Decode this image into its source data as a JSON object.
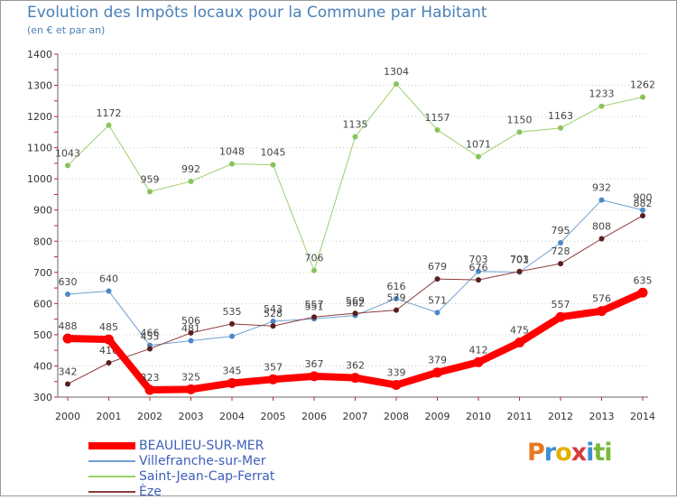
{
  "header": {
    "title": "Evolution des Impôts locaux pour la Commune par Habitant",
    "subtitle": "(en € et par an)"
  },
  "logo": {
    "text": "Proxiti",
    "colors": [
      "#e87722",
      "#3c8fd6",
      "#e2b000",
      "#d63b3b",
      "#3c8fd6",
      "#79b939",
      "#79b939"
    ]
  },
  "chart_data": {
    "type": "line",
    "title": "Evolution des Impôts locaux pour la Commune par Habitant",
    "subtitle": "(en € et par an)",
    "xlabel": "",
    "ylabel": "",
    "x": [
      "2000",
      "2001",
      "2002",
      "2003",
      "2004",
      "2005",
      "2006",
      "2007",
      "2008",
      "2009",
      "2010",
      "2011",
      "2012",
      "2013",
      "2014"
    ],
    "ylim": [
      300,
      1400
    ],
    "yticks": [
      300,
      400,
      500,
      600,
      700,
      800,
      900,
      1000,
      1100,
      1200,
      1300,
      1400
    ],
    "grid": "horizontal dotted",
    "legend_position": "bottom-left",
    "series": [
      {
        "name": "Saint-Jean-Cap-Ferrat",
        "color": "#99d16b",
        "marker": "#88c45a",
        "width": 1,
        "values": [
          1043,
          1172,
          959,
          992,
          1048,
          1045,
          706,
          1135,
          1304,
          1157,
          1071,
          1150,
          1163,
          1233,
          1262
        ],
        "labels": [
          "1043",
          "1172",
          "959",
          "992",
          "1048",
          "1045",
          "706",
          "1135",
          "1304",
          "1157",
          "1071",
          "1150",
          "1163",
          "1233",
          "1262"
        ]
      },
      {
        "name": "Villefranche-sur-Mer",
        "color": "#6fa0d3",
        "marker": "#4d88c8",
        "width": 1,
        "values": [
          630,
          640,
          466,
          481,
          495,
          543,
          551,
          562,
          616,
          571,
          703,
          701,
          795,
          932,
          900
        ],
        "labels": [
          "630",
          "640",
          "466",
          "481",
          "",
          "543",
          "551",
          "562",
          "616",
          "571",
          "703",
          "701",
          "795",
          "932",
          "900"
        ]
      },
      {
        "name": "Èze",
        "color": "#8a3d3d",
        "marker": "#5a1f1f",
        "width": 1,
        "values": [
          342,
          410,
          455,
          506,
          535,
          528,
          557,
          569,
          579,
          679,
          676,
          703,
          728,
          808,
          882
        ],
        "labels": [
          "342",
          "410",
          "455",
          "506",
          "535",
          "528",
          "557",
          "569",
          "579",
          "679",
          "676",
          "703",
          "728",
          "808",
          "882"
        ]
      },
      {
        "name": "BEAULIEU-SUR-MER",
        "color": "#ff0000",
        "marker": "#ff0000",
        "width": 8,
        "values": [
          488,
          485,
          323,
          325,
          345,
          357,
          367,
          362,
          339,
          379,
          412,
          475,
          557,
          576,
          635
        ],
        "labels": [
          "488",
          "485",
          "323",
          "325",
          "345",
          "357",
          "367",
          "362",
          "339",
          "379",
          "412",
          "475",
          "557",
          "576",
          "635"
        ]
      }
    ],
    "legend_order": [
      "BEAULIEU-SUR-MER",
      "Villefranche-sur-Mer",
      "Saint-Jean-Cap-Ferrat",
      "Èze"
    ]
  }
}
